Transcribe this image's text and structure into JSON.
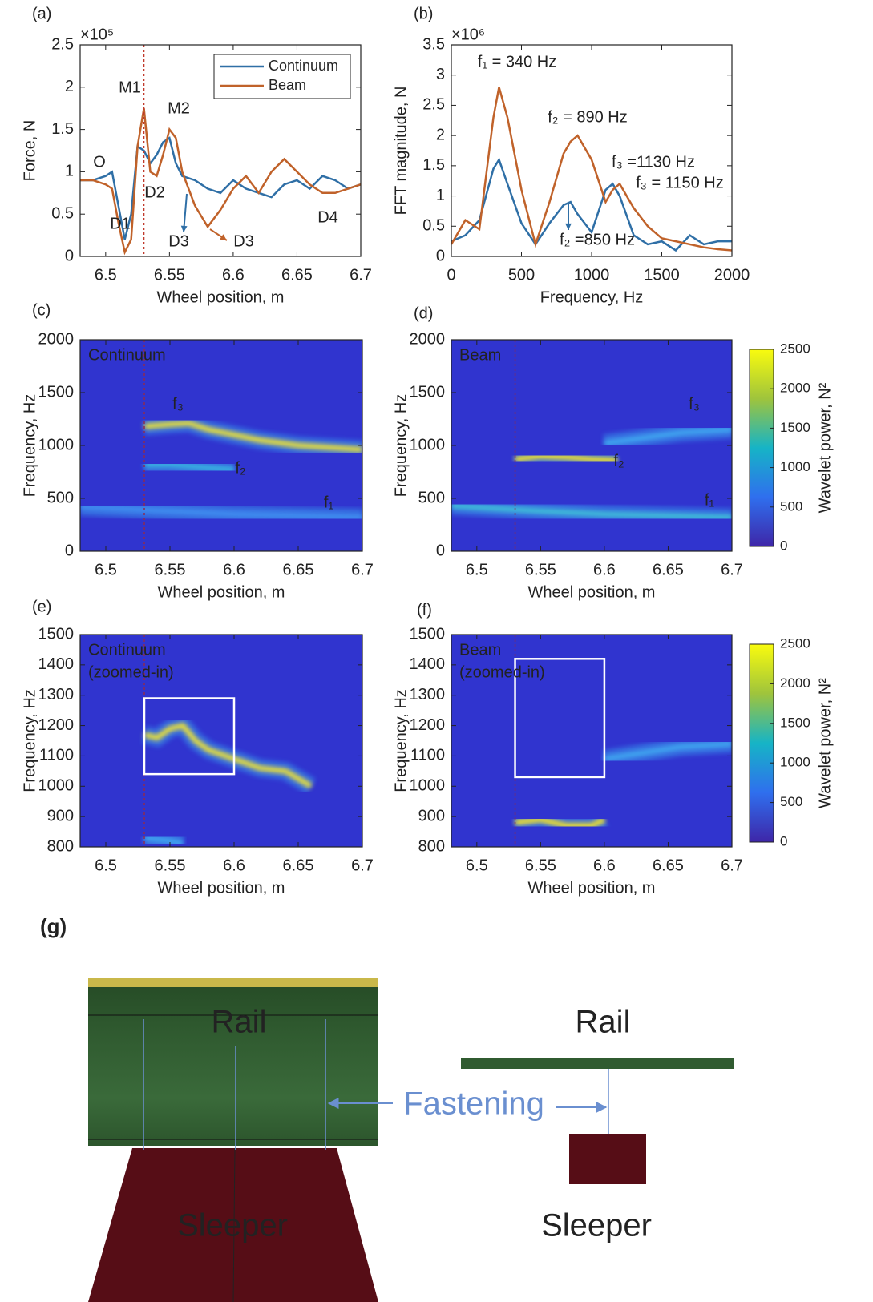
{
  "chart_data": [
    {
      "type": "line",
      "panel_label": "(a)",
      "xlabel": "Wheel position, m",
      "ylabel": "Force, N",
      "y_multiplier": "×10⁵",
      "xlim": [
        6.48,
        6.7
      ],
      "xticks": [
        6.5,
        6.55,
        6.6,
        6.65,
        6.7
      ],
      "ylim": [
        0,
        2.5
      ],
      "yticks": [
        0,
        0.5,
        1,
        1.5,
        2,
        2.5
      ],
      "marker_x": 6.53,
      "legend": "upper right",
      "x": [
        6.48,
        6.49,
        6.5,
        6.505,
        6.51,
        6.515,
        6.52,
        6.525,
        6.53,
        6.535,
        6.54,
        6.545,
        6.55,
        6.555,
        6.56,
        6.57,
        6.58,
        6.59,
        6.6,
        6.61,
        6.62,
        6.63,
        6.64,
        6.65,
        6.66,
        6.67,
        6.68,
        6.69,
        6.7
      ],
      "series": [
        {
          "name": "Continuum",
          "color": "#2f6fa6",
          "values": [
            0.9,
            0.9,
            0.95,
            1.0,
            0.6,
            0.2,
            0.5,
            1.3,
            1.25,
            1.1,
            1.2,
            1.35,
            1.4,
            1.1,
            0.95,
            0.9,
            0.8,
            0.75,
            0.9,
            0.8,
            0.75,
            0.7,
            0.85,
            0.9,
            0.8,
            0.95,
            0.9,
            0.8,
            0.85
          ]
        },
        {
          "name": "Beam",
          "color": "#c0622a",
          "values": [
            0.9,
            0.9,
            0.85,
            0.8,
            0.4,
            0.05,
            0.2,
            1.3,
            1.75,
            1.0,
            0.95,
            1.2,
            1.5,
            1.4,
            1.0,
            0.6,
            0.35,
            0.55,
            0.8,
            0.95,
            0.75,
            1.0,
            1.15,
            1.0,
            0.85,
            0.75,
            0.75,
            0.8,
            0.85
          ]
        }
      ],
      "annotations": [
        {
          "text": "O",
          "color": "#111"
        },
        {
          "text": "M1",
          "color": "#111"
        },
        {
          "text": "M2",
          "color": "#111"
        },
        {
          "text": "D1",
          "color": "#111"
        },
        {
          "text": "D2",
          "color": "#111"
        },
        {
          "text": "D3",
          "color": "#2f6fa6"
        },
        {
          "text": "D3",
          "color": "#c0622a"
        },
        {
          "text": "D4",
          "color": "#111"
        }
      ]
    },
    {
      "type": "line",
      "panel_label": "(b)",
      "xlabel": "Frequency, Hz",
      "ylabel": "FFT magnitude, N",
      "y_multiplier": "×10⁶",
      "xlim": [
        0,
        2000
      ],
      "xticks": [
        0,
        500,
        1000,
        1500,
        2000
      ],
      "ylim": [
        0,
        3.5
      ],
      "yticks": [
        0,
        0.5,
        1,
        1.5,
        2,
        2.5,
        3,
        3.5
      ],
      "x": [
        0,
        100,
        200,
        300,
        340,
        400,
        500,
        600,
        700,
        800,
        850,
        900,
        1000,
        1100,
        1150,
        1200,
        1300,
        1400,
        1500,
        1600,
        1700,
        1800,
        1900,
        2000
      ],
      "series": [
        {
          "name": "Continuum",
          "color": "#2f6fa6",
          "values": [
            0.25,
            0.35,
            0.6,
            1.45,
            1.6,
            1.2,
            0.55,
            0.2,
            0.55,
            0.85,
            0.9,
            0.7,
            0.4,
            1.1,
            1.2,
            1.0,
            0.35,
            0.2,
            0.25,
            0.1,
            0.35,
            0.2,
            0.25,
            0.25
          ]
        },
        {
          "name": "Beam",
          "color": "#c0622a",
          "values": [
            0.2,
            0.6,
            0.45,
            2.3,
            2.8,
            2.3,
            1.1,
            0.2,
            0.9,
            1.7,
            1.9,
            2.0,
            1.6,
            0.9,
            1.1,
            1.2,
            0.8,
            0.5,
            0.3,
            0.25,
            0.2,
            0.15,
            0.12,
            0.1
          ]
        }
      ],
      "annotations": [
        {
          "text": "f₁ = 340 Hz",
          "color": "#111"
        },
        {
          "text": "f₂ = 890 Hz",
          "color": "#c0622a"
        },
        {
          "text": "f₃ =1130 Hz",
          "color": "#2f6fa6"
        },
        {
          "text": "f₃ = 1150 Hz",
          "color": "#c0622a"
        },
        {
          "text": "f₂ =850 Hz",
          "color": "#2f6fa6"
        }
      ]
    },
    {
      "type": "heatmap",
      "panel_label": "(c)",
      "label": [
        "Continuum"
      ],
      "xlabel": "Wheel position, m",
      "ylabel": "Frequency, Hz",
      "xlim": [
        6.48,
        6.7
      ],
      "xticks": [
        6.5,
        6.55,
        6.6,
        6.65,
        6.7
      ],
      "ylim": [
        0,
        2000
      ],
      "yticks": [
        0,
        500,
        1000,
        1500,
        2000
      ],
      "marker_x": 6.53,
      "series": [
        {
          "name": "f₃",
          "color": "#e7e03a",
          "x": [
            6.53,
            6.55,
            6.565,
            6.58,
            6.6,
            6.62,
            6.65,
            6.7
          ],
          "values": [
            1180,
            1200,
            1210,
            1150,
            1100,
            1050,
            1000,
            960
          ]
        },
        {
          "name": "f₂",
          "color": "#38b3e0",
          "x": [
            6.53,
            6.55,
            6.57,
            6.6
          ],
          "values": [
            820,
            820,
            800,
            770
          ]
        },
        {
          "name": "f₁",
          "color": "#3f8ef0",
          "x": [
            6.48,
            6.55,
            6.6,
            6.7
          ],
          "values": [
            420,
            380,
            350,
            320
          ]
        }
      ]
    },
    {
      "type": "heatmap",
      "panel_label": "(d)",
      "label": [
        "Beam"
      ],
      "xlabel": "Wheel position, m",
      "ylabel": "Frequency, Hz",
      "xlim": [
        6.48,
        6.7
      ],
      "xticks": [
        6.5,
        6.55,
        6.6,
        6.65,
        6.7
      ],
      "ylim": [
        0,
        2000
      ],
      "yticks": [
        0,
        500,
        1000,
        1500,
        2000
      ],
      "marker_x": 6.53,
      "colorbar": {
        "label": "Wavelet power, N²",
        "lim": [
          0,
          2500
        ],
        "ticks": [
          0,
          500,
          1000,
          1500,
          2000,
          2500
        ]
      },
      "series": [
        {
          "name": "f₃",
          "color": "#3fa6f0",
          "x": [
            6.6,
            6.63,
            6.66,
            6.7
          ],
          "values": [
            1020,
            1070,
            1120,
            1150
          ]
        },
        {
          "name": "f₂",
          "color": "#f2e22c",
          "x": [
            6.53,
            6.55,
            6.57,
            6.59,
            6.61
          ],
          "values": [
            870,
            900,
            890,
            870,
            860
          ]
        },
        {
          "name": "f₁",
          "color": "#40c0d8",
          "x": [
            6.48,
            6.55,
            6.6,
            6.7
          ],
          "values": [
            430,
            380,
            350,
            320
          ]
        }
      ]
    },
    {
      "type": "heatmap",
      "panel_label": "(e)",
      "label": [
        "Continuum",
        "(zoomed-in)"
      ],
      "xlabel": "Wheel position, m",
      "ylabel": "Frequency, Hz",
      "xlim": [
        6.48,
        6.7
      ],
      "xticks": [
        6.5,
        6.55,
        6.6,
        6.65,
        6.7
      ],
      "ylim": [
        800,
        1500
      ],
      "yticks": [
        800,
        900,
        1000,
        1100,
        1200,
        1300,
        1400,
        1500
      ],
      "marker_x": 6.53,
      "highlight_box": [
        6.53,
        6.6,
        1040,
        1290
      ],
      "series": [
        {
          "color": "#e7e03a",
          "x": [
            6.53,
            6.54,
            6.55,
            6.56,
            6.57,
            6.58,
            6.6,
            6.62,
            6.64,
            6.66
          ],
          "values": [
            1170,
            1160,
            1190,
            1200,
            1150,
            1120,
            1090,
            1060,
            1050,
            1000
          ]
        },
        {
          "color": "#3fa6f0",
          "x": [
            6.53,
            6.55,
            6.56
          ],
          "values": [
            830,
            820,
            810
          ]
        }
      ]
    },
    {
      "type": "heatmap",
      "panel_label": "(f)",
      "label": [
        "Beam",
        "(zoomed-in)"
      ],
      "xlabel": "Wheel position, m",
      "ylabel": "Frequency, Hz",
      "xlim": [
        6.48,
        6.7
      ],
      "xticks": [
        6.5,
        6.55,
        6.6,
        6.65,
        6.7
      ],
      "ylim": [
        800,
        1500
      ],
      "yticks": [
        800,
        900,
        1000,
        1100,
        1200,
        1300,
        1400,
        1500
      ],
      "marker_x": 6.53,
      "highlight_box": [
        6.53,
        6.6,
        1030,
        1420
      ],
      "colorbar": {
        "label": "Wavelet power, N²",
        "lim": [
          0,
          2500
        ],
        "ticks": [
          0,
          500,
          1000,
          1500,
          2000,
          2500
        ]
      },
      "series": [
        {
          "color": "#f2e22c",
          "x": [
            6.53,
            6.55,
            6.57,
            6.59,
            6.6
          ],
          "values": [
            880,
            890,
            870,
            870,
            890
          ]
        },
        {
          "color": "#3fa6f0",
          "x": [
            6.6,
            6.63,
            6.66,
            6.7
          ],
          "values": [
            1090,
            1110,
            1130,
            1140
          ]
        }
      ]
    }
  ],
  "diagram": {
    "panel_label": "(g)",
    "left": {
      "rail": "Rail",
      "sleeper": "Sleeper"
    },
    "fastening": "Fastening",
    "right": {
      "rail": "Rail",
      "sleeper": "Sleeper"
    }
  }
}
